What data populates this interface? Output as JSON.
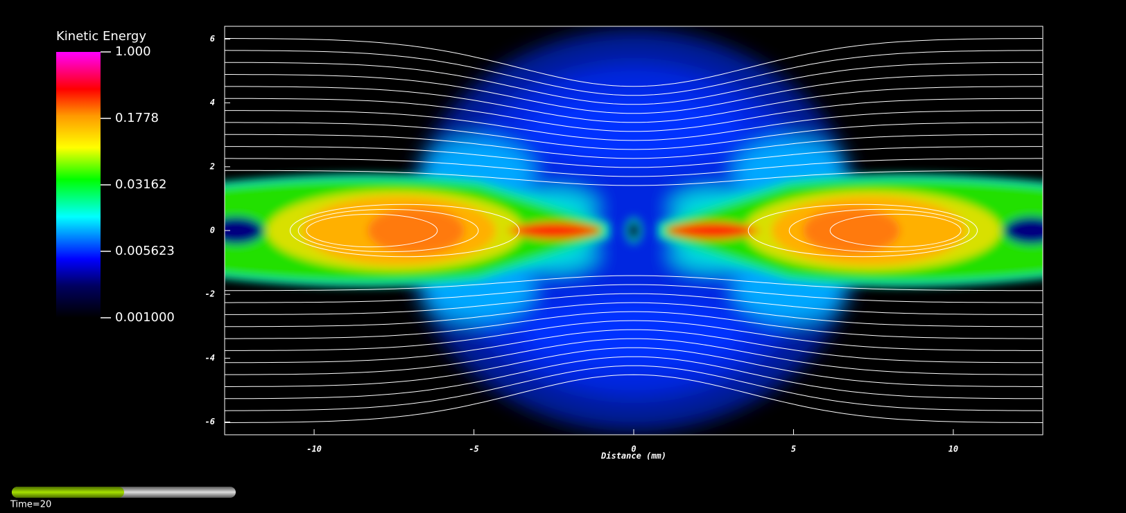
{
  "chart_data": {
    "type": "field",
    "xlabel": "Distance (mm)",
    "xlim": [
      -12.8,
      12.8
    ],
    "ylim": [
      -6.4,
      6.4
    ],
    "xticks": [
      -10,
      -5,
      0,
      5,
      10
    ],
    "yticks": [
      -6,
      -4,
      -2,
      0,
      2,
      4,
      6
    ],
    "colorbar": {
      "title": "Kinetic Energy",
      "scale": "log",
      "lim": [
        0.001,
        1
      ],
      "ticks": [
        {
          "value": 1,
          "label": "1.000"
        },
        0.1778,
        0.03162,
        0.005623,
        {
          "value": 0.001,
          "label": "0.001000"
        }
      ]
    }
  },
  "time_label": "Time=20"
}
